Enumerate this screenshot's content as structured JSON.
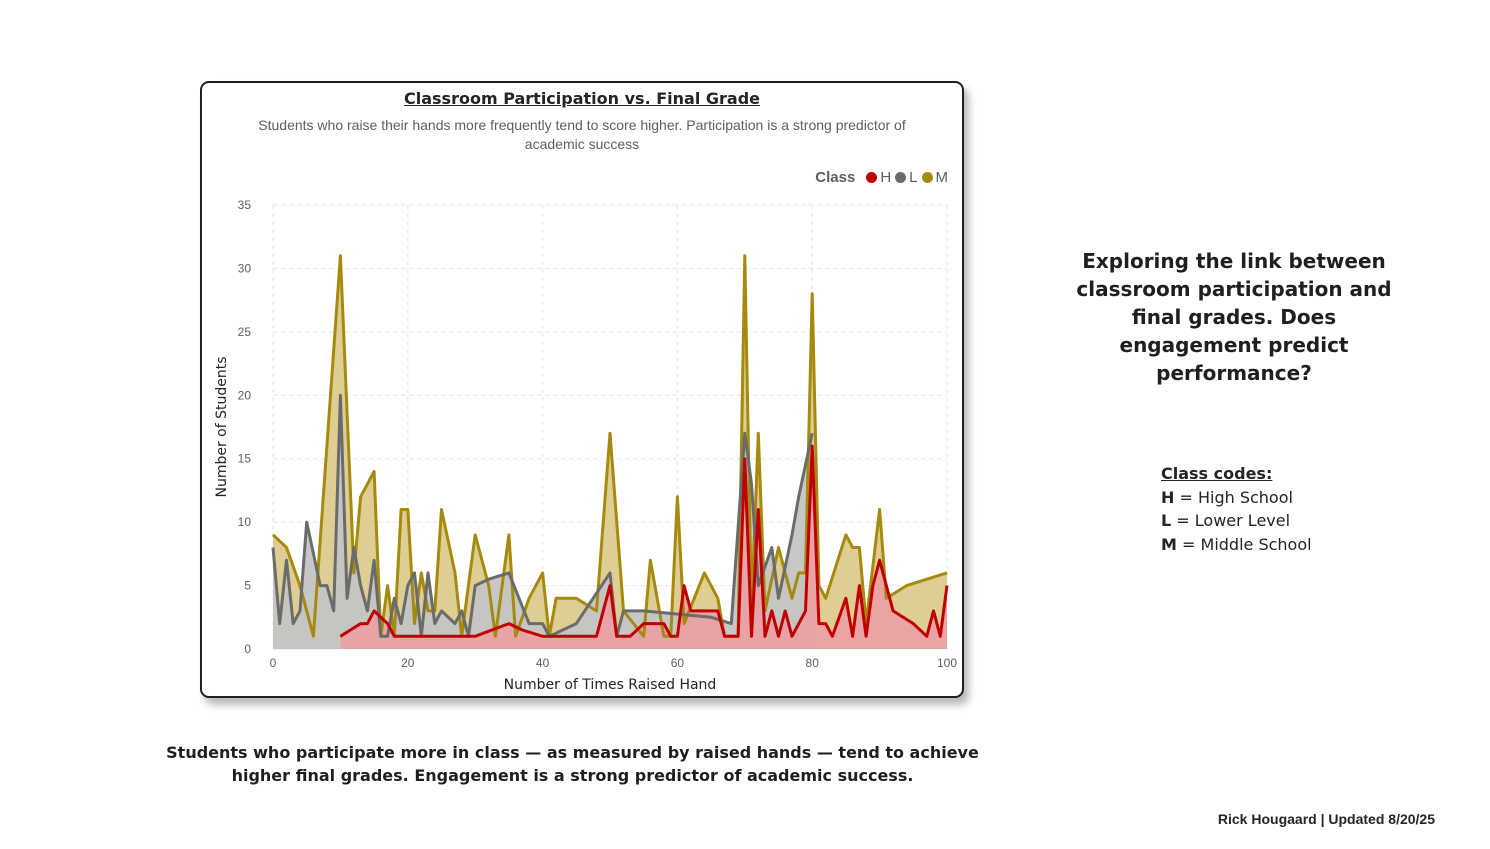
{
  "chart_data": {
    "type": "area",
    "title": "Classroom Participation vs. Final Grade",
    "subtitle": "Students who raise their hands more frequently tend to score higher. Participation is a strong predictor of academic success",
    "xlabel": "Number of Times Raised Hand",
    "ylabel": "Number of Students",
    "xlim": [
      0,
      100
    ],
    "ylim": [
      0,
      35
    ],
    "xticks": [
      0,
      20,
      40,
      60,
      80,
      100
    ],
    "yticks": [
      0,
      5,
      10,
      15,
      20,
      25,
      30,
      35
    ],
    "grid": true,
    "legend": {
      "title": "Class",
      "position": "top-right"
    },
    "series": [
      {
        "name": "M",
        "color": "#a58a0e",
        "fill": "#dccb8e",
        "x": [
          0,
          2,
          4,
          6,
          10,
          12,
          13,
          15,
          16,
          17,
          18,
          19,
          20,
          21,
          22,
          23,
          24,
          25,
          27,
          28,
          30,
          32,
          33,
          35,
          36,
          38,
          40,
          41,
          42,
          45,
          48,
          50,
          52,
          55,
          56,
          58,
          59,
          60,
          61,
          64,
          66,
          67,
          69,
          70,
          71,
          72,
          73,
          75,
          76,
          77,
          78,
          79,
          80,
          81,
          82,
          85,
          86,
          87,
          88,
          90,
          91,
          94,
          97,
          100
        ],
        "y": [
          9,
          8,
          5,
          1,
          31,
          6,
          12,
          14,
          1,
          5,
          1,
          11,
          11,
          2,
          6,
          3,
          3,
          11,
          6,
          1,
          9,
          5,
          1,
          9,
          1,
          4,
          6,
          1,
          4,
          4,
          3,
          17,
          3,
          1,
          7,
          1,
          1,
          12,
          2,
          6,
          4,
          1,
          1,
          31,
          3,
          17,
          3,
          8,
          6,
          4,
          6,
          6,
          28,
          5,
          4,
          9,
          8,
          8,
          2,
          11,
          4,
          5,
          5.5,
          6
        ]
      },
      {
        "name": "L",
        "color": "#6b6b6b",
        "fill": "#c4c4c4",
        "x": [
          0,
          1,
          2,
          3,
          4,
          5,
          7,
          8,
          9,
          10,
          11,
          12,
          13,
          14,
          15,
          16,
          17,
          18,
          19,
          20,
          21,
          22,
          23,
          24,
          25,
          27,
          28,
          29,
          30,
          32,
          35,
          38,
          40,
          41,
          45,
          50,
          51,
          52,
          55,
          65,
          68,
          70,
          71,
          72,
          74,
          75,
          77,
          78,
          80
        ],
        "y": [
          8,
          2,
          7,
          2,
          3,
          10,
          5,
          5,
          3,
          20,
          4,
          8,
          5,
          3,
          7,
          1,
          1,
          4,
          2,
          5,
          6,
          1,
          6,
          2,
          3,
          2,
          3,
          1,
          5,
          5.5,
          6,
          2,
          2,
          1,
          2,
          6,
          1,
          3,
          3,
          2.5,
          2,
          17,
          13,
          5,
          8,
          4,
          9,
          12,
          17
        ]
      },
      {
        "name": "H",
        "color": "#c00000",
        "fill": "#e9a1a3",
        "x": [
          10,
          13,
          14,
          15,
          17,
          18,
          20,
          30,
          35,
          37,
          40,
          45,
          48,
          50,
          51,
          53,
          55,
          58,
          59,
          60,
          61,
          62,
          64,
          66,
          67,
          69,
          70,
          71,
          72,
          73,
          74,
          75,
          76,
          77,
          79,
          80,
          81,
          82,
          83,
          85,
          86,
          87,
          88,
          89,
          90,
          92,
          95,
          97,
          98,
          99,
          100
        ],
        "y": [
          1,
          2,
          2,
          3,
          2,
          1,
          1,
          1,
          2,
          1.5,
          1,
          1,
          1,
          5,
          1,
          1,
          2,
          2,
          1,
          1,
          5,
          3,
          3,
          3,
          1,
          1,
          15,
          1,
          11,
          1,
          3,
          1,
          3,
          1,
          3,
          16,
          2,
          2,
          1,
          4,
          1,
          5,
          1,
          5,
          7,
          3,
          2,
          1,
          3,
          1,
          5
        ]
      }
    ]
  },
  "headline": "Exploring the link between classroom participation and final grades. Does engagement predict performance?",
  "codes": {
    "title": "Class codes: ",
    "items": [
      {
        "code": "H",
        "label": "= High School"
      },
      {
        "code": "L",
        "label": "= Lower Level"
      },
      {
        "code": "M",
        "label": "= Middle School"
      }
    ]
  },
  "summary": "Students who participate more in class — as measured by raised hands — tend to achieve higher final grades. Engagement is a strong predictor of academic success.",
  "credit": "Rick Hougaard | Updated 8/20/25"
}
